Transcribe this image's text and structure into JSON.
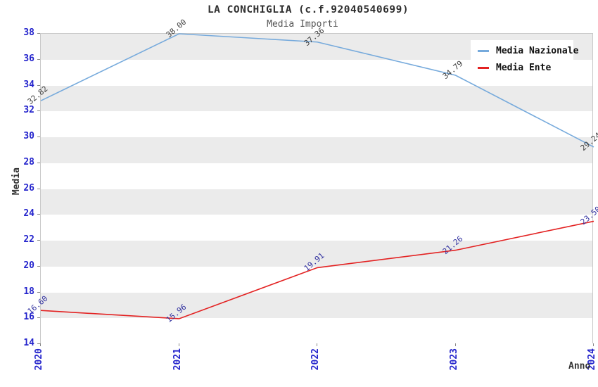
{
  "chart_data": {
    "type": "line",
    "title": "LA CONCHIGLIA (c.f.92040540699)",
    "subtitle": "Media Importi",
    "xlabel": "Anno",
    "ylabel": "Media",
    "categories": [
      "2020",
      "2021",
      "2022",
      "2023",
      "2024"
    ],
    "series": [
      {
        "name": "Media Nazionale",
        "color": "#76aadc",
        "label_color": "#3f3f3f",
        "values": [
          32.82,
          38.0,
          37.36,
          34.79,
          29.24
        ],
        "labels": [
          "32.82",
          "38.00",
          "37.36",
          "34.79",
          "29.24"
        ]
      },
      {
        "name": "Media Ente",
        "color": "#e32222",
        "label_color": "#3232a0",
        "values": [
          16.6,
          15.96,
          19.91,
          21.26,
          23.5
        ],
        "labels": [
          "16.60",
          "15.96",
          "19.91",
          "21.26",
          "23.50"
        ]
      }
    ],
    "ylim": [
      14,
      38
    ],
    "ytick_step": 2,
    "yticks": [
      "38",
      "36",
      "34",
      "32",
      "30",
      "28",
      "26",
      "24",
      "22",
      "20",
      "18",
      "16",
      "14"
    ],
    "xticks": [
      "2020",
      "2021",
      "2022",
      "2023",
      "2024"
    ],
    "grid": "horizontal-alternating-bands",
    "band_colors": [
      "#ebebeb",
      "#ffffff"
    ],
    "tick_label_color": "#2424cc",
    "legend_position": "top-right"
  }
}
